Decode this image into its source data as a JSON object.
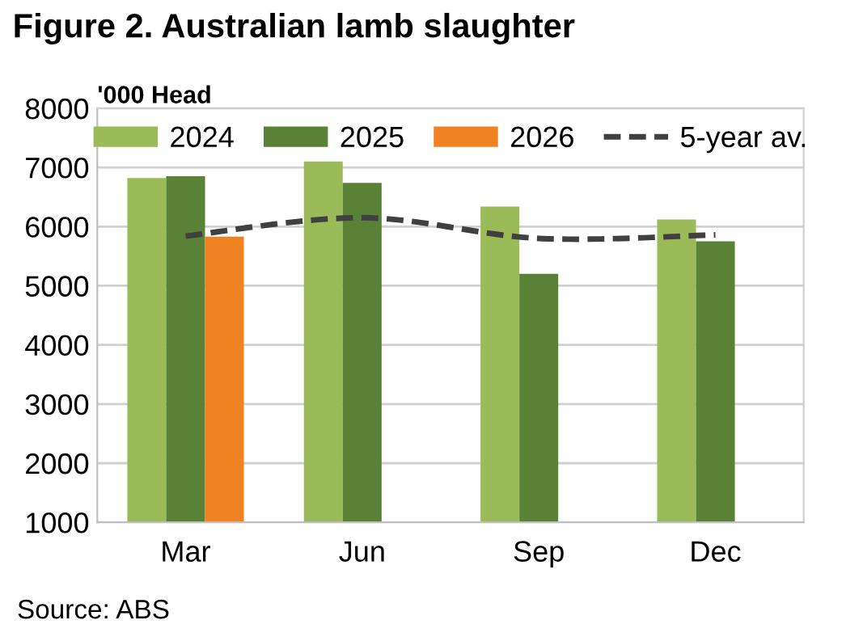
{
  "chart_data": {
    "type": "bar",
    "title": "Figure 2. Australian lamb slaughter",
    "ylabel": "'000 Head",
    "categories": [
      "Mar",
      "Jun",
      "Sep",
      "Dec"
    ],
    "series": [
      {
        "name": "2024",
        "color": "#9bbb59",
        "values": [
          6820,
          7100,
          6340,
          6120
        ]
      },
      {
        "name": "2025",
        "color": "#5a8236",
        "values": [
          6850,
          6740,
          5200,
          5750
        ]
      },
      {
        "name": "2026",
        "color": "#f08224",
        "values": [
          5830,
          null,
          null,
          null
        ]
      },
      {
        "name": "5-year av.",
        "type": "line",
        "color": "#404040",
        "line_style": "dashed",
        "values": [
          5840,
          6150,
          5800,
          5860
        ]
      }
    ],
    "ylim": [
      1000,
      8000
    ],
    "yticks": [
      1000,
      2000,
      3000,
      4000,
      5000,
      6000,
      7000,
      8000
    ],
    "grid": "y",
    "legend": "top",
    "annotations": [
      "Source: ABS"
    ]
  }
}
